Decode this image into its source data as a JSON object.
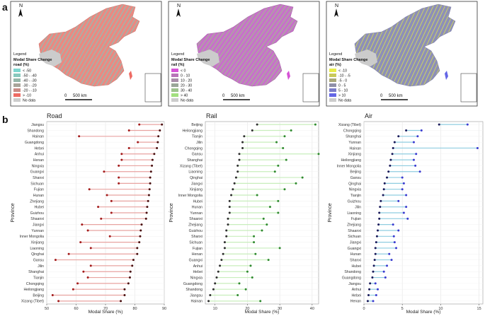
{
  "panel_labels": {
    "a": "a",
    "b": "b"
  },
  "maps": [
    {
      "id": "road",
      "legend_heading": "Legend",
      "legend_title": "Modal Share Change",
      "legend_subtitle": "road (%)",
      "entries": [
        {
          "label": "< -50",
          "color": "#7ed6cf"
        },
        {
          "label": "-50 - -40",
          "color": "#88c8bd"
        },
        {
          "label": "-40 - -30",
          "color": "#96b6aa"
        },
        {
          "label": "-30 - -20",
          "color": "#a8a49a"
        },
        {
          "label": "-20 - -10",
          "color": "#c98c86"
        },
        {
          "label": "> -10",
          "color": "#ee6b64"
        },
        {
          "label": "No data",
          "color": "#cccccc"
        }
      ],
      "base_color": "#e98a82",
      "overlay_color": "#6fd3c8",
      "scale_zero": "0",
      "scale_label": "500 km",
      "north": "N"
    },
    {
      "id": "rail",
      "legend_heading": "Legend",
      "legend_title": "Modal Share Change",
      "legend_subtitle": "rail (%)",
      "entries": [
        {
          "label": "< 0",
          "color": "#d653d6"
        },
        {
          "label": "0 - 10",
          "color": "#b873b8"
        },
        {
          "label": "10 - 20",
          "color": "#a98fa9"
        },
        {
          "label": "20 - 30",
          "color": "#9aa798"
        },
        {
          "label": "30 - 40",
          "color": "#9ec48e"
        },
        {
          "label": "> 40",
          "color": "#a2e07e"
        },
        {
          "label": "No data",
          "color": "#cccccc"
        }
      ],
      "base_color": "#c673c8",
      "overlay_color": "#98d67c",
      "scale_zero": "0",
      "scale_label": "500 km",
      "north": "N"
    },
    {
      "id": "air",
      "legend_heading": "Legend",
      "legend_title": "Modal Share Change",
      "legend_subtitle": "air (%)",
      "entries": [
        {
          "label": "< -10",
          "color": "#e8ec4a"
        },
        {
          "label": "-10 - -5",
          "color": "#c9c95a"
        },
        {
          "label": "-5 - 0",
          "color": "#aaa97a"
        },
        {
          "label": "0 - 5",
          "color": "#8f8fa8"
        },
        {
          "label": "5 - 10",
          "color": "#7b7cc8"
        },
        {
          "label": "> 10",
          "color": "#6466e6"
        },
        {
          "label": "No data",
          "color": "#cccccc"
        }
      ],
      "base_color": "#8d8fb8",
      "overlay_color": "#dde34c",
      "scale_zero": "0",
      "scale_label": "500 km",
      "north": "N"
    }
  ],
  "chart_data": [
    {
      "type": "dumbbell",
      "title": "Road",
      "xlabel": "Modal Share (%)",
      "ylabel": "Province",
      "xlim": [
        50,
        90
      ],
      "xticks": [
        50,
        60,
        70,
        80,
        90
      ],
      "start_color": "#a31b1b",
      "end_color": "#4a1010",
      "line_color": "#e8a3a0",
      "grid": true,
      "categories": [
        "Jiangsu",
        "Shandong",
        "Hainan",
        "Guangdong",
        "Hebei",
        "Anhui",
        "Henan",
        "Ningxia",
        "Guangxi",
        "Shanxi",
        "Sichuan",
        "Fujian",
        "Hunan",
        "Zhejiang",
        "Hubei",
        "Guizhou",
        "Shaanxi",
        "Jiangxi",
        "Yunnan",
        "Inner Mongolia",
        "Xinjiang",
        "Liaoning",
        "Qinghai",
        "Gansu",
        "Jilin",
        "Shanghai",
        "Tianjin",
        "Chongqing",
        "Heilongjiang",
        "Beijing",
        "Xizang (Tibet)"
      ],
      "start": [
        81.5,
        78,
        61,
        81,
        78,
        75.5,
        75.5,
        74.5,
        69.5,
        74.5,
        74.5,
        64.5,
        70.5,
        72,
        67.5,
        72,
        68.5,
        62,
        64,
        71.5,
        61.5,
        65,
        57.5,
        53,
        65,
        62.5,
        64,
        60.5,
        59,
        52,
        54
      ],
      "end": [
        89.2,
        88.5,
        88,
        87.8,
        87.5,
        86.6,
        86,
        85.8,
        85.5,
        85.2,
        85.2,
        85,
        84.8,
        84.5,
        84.2,
        84,
        83.8,
        82.3,
        82,
        81.8,
        81.5,
        80.8,
        80.8,
        79.5,
        79.1,
        78.5,
        78.3,
        77.8,
        76.5,
        76.5,
        75.2
      ]
    },
    {
      "type": "dumbbell",
      "title": "Rail",
      "xlabel": "Modal Share (%)",
      "ylabel": "Province",
      "xlim": [
        7,
        42
      ],
      "xticks": [
        10,
        20,
        30,
        40
      ],
      "start_color": "#2f2f2f",
      "end_color": "#2f8a2f",
      "line_color": "#c8eebc",
      "grid": true,
      "categories": [
        "Beijing",
        "Heilongjiang",
        "Tianjin",
        "Jilin",
        "Chongqing",
        "Gansu",
        "Shanghai",
        "Xizang (Tibet)",
        "Liaoning",
        "Qinghai",
        "Jiangxi",
        "Xinjiang",
        "Inner Mongolia",
        "Hubei",
        "Hunan",
        "Yunnan",
        "Shaanxi",
        "Zhejiang",
        "Guizhou",
        "Shanxi",
        "Sichuan",
        "Fujian",
        "Henan",
        "Guangxi",
        "Anhui",
        "Hebei",
        "Ningxia",
        "Guangdong",
        "Shandong",
        "Jiangsu",
        "Hainan"
      ],
      "start": [
        23,
        21.5,
        19,
        18.5,
        18.5,
        17.5,
        17.5,
        17,
        17,
        16.5,
        16,
        15.5,
        15,
        14.5,
        14.5,
        14.5,
        14,
        14,
        13.5,
        13.5,
        13,
        13,
        12.5,
        12,
        11.5,
        11,
        10.5,
        10,
        9.5,
        8.5,
        8
      ],
      "end": [
        41,
        33.5,
        31.5,
        29,
        31,
        42,
        32,
        29.5,
        28.5,
        37,
        35,
        31.5,
        23,
        29.5,
        27,
        29.5,
        25,
        26,
        24.5,
        22,
        22,
        30,
        22.5,
        26.5,
        21,
        20,
        21.5,
        17.5,
        19.5,
        17,
        24
      ]
    },
    {
      "type": "dumbbell",
      "title": "Air",
      "xlabel": "Modal Share (%)",
      "ylabel": "Province",
      "xlim": [
        0,
        15.5
      ],
      "xticks": [
        0,
        5,
        10,
        15
      ],
      "start_color": "#1a1a5a",
      "end_color": "#3a3ad0",
      "line_color": "#8fcde0",
      "grid": true,
      "categories": [
        "Xizang (Tibet)",
        "Chongqing",
        "Shanghai",
        "Yunnan",
        "Hainan",
        "Xinjiang",
        "Heilongjiang",
        "Inner Mongolia",
        "Beijing",
        "Gansu",
        "Qinghai",
        "Ningxia",
        "Tianjin",
        "Guizhou",
        "Jilin",
        "Liaoning",
        "Fujian",
        "Zhejiang",
        "Shaanxi",
        "Sichuan",
        "Jiangxi",
        "Guangxi",
        "Hunan",
        "Shanxi",
        "Hubei",
        "Shandong",
        "Guangdong",
        "Jiangsu",
        "Anhui",
        "Hebei",
        "Henan"
      ],
      "start": [
        9.8,
        5.5,
        4.5,
        4,
        3.8,
        3.7,
        3.5,
        3.4,
        3.2,
        3,
        2.7,
        2.6,
        2.5,
        2.2,
        2.1,
        2,
        2,
        1.9,
        1.8,
        1.7,
        1.6,
        1.5,
        1.5,
        1.4,
        1.3,
        1.2,
        1.1,
        0.8,
        0.7,
        0.6,
        0.5
      ],
      "end": [
        13.5,
        7.5,
        7,
        6.5,
        14.8,
        6.8,
        6.5,
        6.7,
        7.3,
        5,
        5.2,
        5,
        5.5,
        4.5,
        5.5,
        5.2,
        5.7,
        3.8,
        4.5,
        3.9,
        4,
        4.2,
        3.3,
        3.6,
        3,
        2.6,
        2.8,
        1.5,
        1.8,
        1.6,
        1.2
      ]
    }
  ]
}
